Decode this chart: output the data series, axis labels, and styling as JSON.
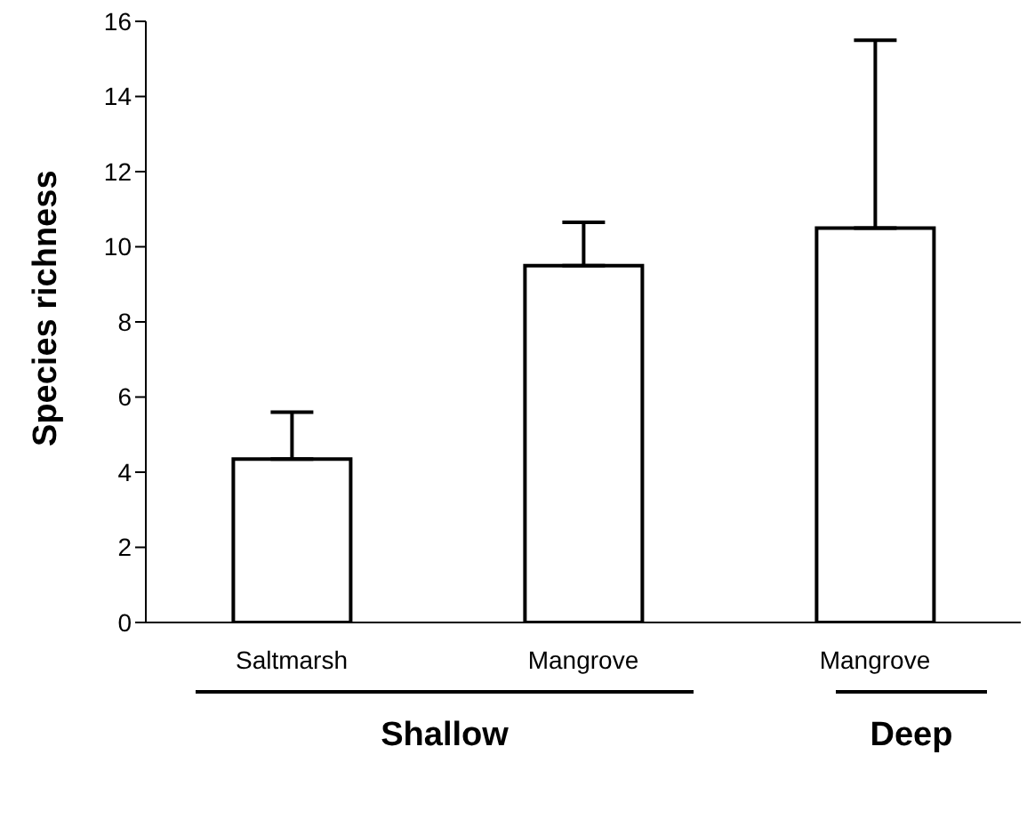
{
  "chart_data": {
    "type": "bar",
    "ylabel": "Species richness",
    "categories": [
      "Saltmarsh",
      "Mangrove",
      "Mangrove"
    ],
    "values": [
      4.35,
      9.5,
      10.5
    ],
    "errors": [
      [
        4.35,
        5.6
      ],
      [
        9.5,
        10.65
      ],
      [
        10.5,
        15.5
      ]
    ],
    "color": "#ffffff",
    "ylim": [
      0,
      16
    ],
    "yticks": [
      0,
      2,
      4,
      6,
      8,
      10,
      12,
      14,
      16
    ],
    "grid": false,
    "legend": false,
    "annotations": [
      "Shallow",
      "Deep"
    ]
  }
}
